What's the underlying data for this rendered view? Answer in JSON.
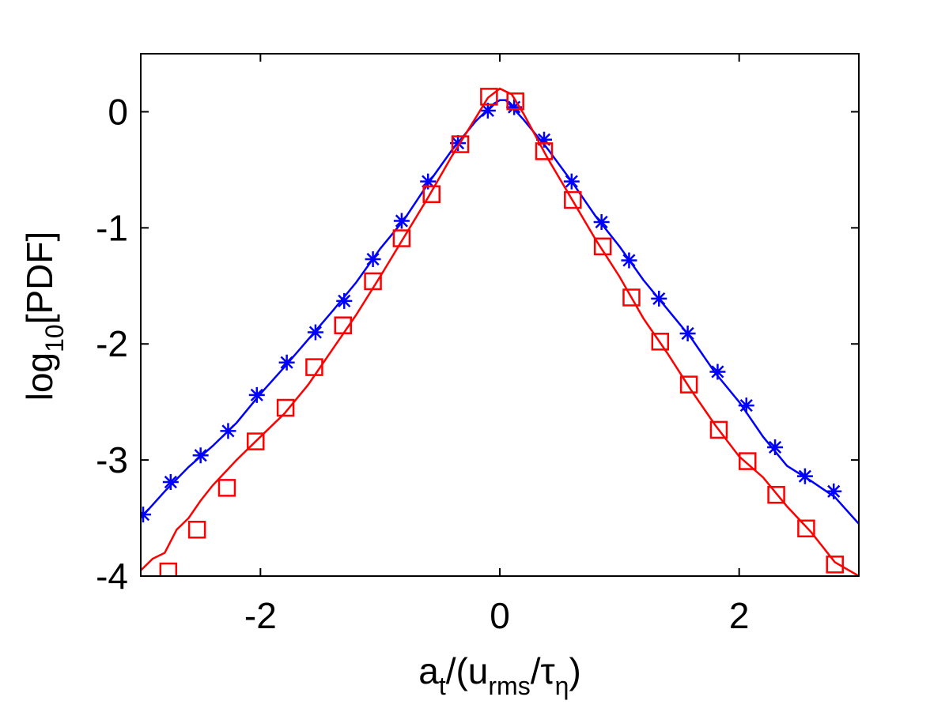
{
  "chart_data": {
    "type": "line",
    "xlabel": {
      "base": "a",
      "sub1": "t",
      "mid": "/(u",
      "sub2": "rms",
      "mid2": "/τ",
      "sub3": "η",
      "end": ")"
    },
    "ylabel": {
      "pre": "log",
      "sub": "10",
      "post": "[PDF]"
    },
    "xlim": [
      -3,
      3
    ],
    "ylim": [
      -4,
      0.5
    ],
    "xticks": [
      -2,
      0,
      2
    ],
    "xtick_labels": [
      "-2",
      "0",
      "2"
    ],
    "yticks": [
      -4,
      -3,
      -2,
      -1,
      0
    ],
    "ytick_labels": [
      "-4",
      "-3",
      "-2",
      "-1",
      "0"
    ],
    "grid": false,
    "series": [
      {
        "name": "asterisk series",
        "color": "#0000ff",
        "marker": "asterisk",
        "line": [
          [
            -3.0,
            -3.5
          ],
          [
            -2.8,
            -3.27
          ],
          [
            -2.6,
            -3.06
          ],
          [
            -2.4,
            -2.88
          ],
          [
            -2.2,
            -2.68
          ],
          [
            -2.0,
            -2.43
          ],
          [
            -1.8,
            -2.2
          ],
          [
            -1.6,
            -1.96
          ],
          [
            -1.4,
            -1.72
          ],
          [
            -1.2,
            -1.47
          ],
          [
            -1.0,
            -1.18
          ],
          [
            -0.8,
            -0.93
          ],
          [
            -0.6,
            -0.62
          ],
          [
            -0.4,
            -0.33
          ],
          [
            -0.2,
            -0.08
          ],
          [
            -0.05,
            0.07
          ],
          [
            0.0,
            0.1
          ],
          [
            0.05,
            0.1
          ],
          [
            0.2,
            -0.07
          ],
          [
            0.4,
            -0.32
          ],
          [
            0.6,
            -0.6
          ],
          [
            0.8,
            -0.9
          ],
          [
            1.0,
            -1.16
          ],
          [
            1.2,
            -1.45
          ],
          [
            1.4,
            -1.7
          ],
          [
            1.6,
            -1.95
          ],
          [
            1.8,
            -2.25
          ],
          [
            2.0,
            -2.5
          ],
          [
            2.2,
            -2.8
          ],
          [
            2.4,
            -3.05
          ],
          [
            2.6,
            -3.18
          ],
          [
            2.8,
            -3.32
          ],
          [
            3.0,
            -3.55
          ]
        ],
        "markers": [
          [
            -2.98,
            -3.47
          ],
          [
            -2.75,
            -3.19
          ],
          [
            -2.5,
            -2.96
          ],
          [
            -2.27,
            -2.75
          ],
          [
            -2.03,
            -2.44
          ],
          [
            -1.78,
            -2.16
          ],
          [
            -1.54,
            -1.9
          ],
          [
            -1.3,
            -1.63
          ],
          [
            -1.06,
            -1.27
          ],
          [
            -0.82,
            -0.94
          ],
          [
            -0.6,
            -0.6
          ],
          [
            -0.35,
            -0.27
          ],
          [
            -0.1,
            0.01
          ],
          [
            0.12,
            0.04
          ],
          [
            0.37,
            -0.24
          ],
          [
            0.6,
            -0.6
          ],
          [
            0.85,
            -0.95
          ],
          [
            1.08,
            -1.28
          ],
          [
            1.33,
            -1.61
          ],
          [
            1.57,
            -1.91
          ],
          [
            1.82,
            -2.24
          ],
          [
            2.06,
            -2.53
          ],
          [
            2.3,
            -2.89
          ],
          [
            2.55,
            -3.14
          ],
          [
            2.79,
            -3.27
          ]
        ]
      },
      {
        "name": "square series",
        "color": "#ff0000",
        "marker": "square",
        "line": [
          [
            -3.0,
            -3.95
          ],
          [
            -2.9,
            -3.85
          ],
          [
            -2.8,
            -3.8
          ],
          [
            -2.7,
            -3.6
          ],
          [
            -2.6,
            -3.5
          ],
          [
            -2.5,
            -3.35
          ],
          [
            -2.4,
            -3.22
          ],
          [
            -2.2,
            -3.0
          ],
          [
            -2.0,
            -2.8
          ],
          [
            -1.8,
            -2.6
          ],
          [
            -1.6,
            -2.35
          ],
          [
            -1.4,
            -2.05
          ],
          [
            -1.2,
            -1.75
          ],
          [
            -1.0,
            -1.42
          ],
          [
            -0.8,
            -1.08
          ],
          [
            -0.6,
            -0.74
          ],
          [
            -0.4,
            -0.38
          ],
          [
            -0.2,
            -0.05
          ],
          [
            -0.1,
            0.12
          ],
          [
            0.0,
            0.2
          ],
          [
            0.1,
            0.15
          ],
          [
            0.2,
            -0.02
          ],
          [
            0.4,
            -0.4
          ],
          [
            0.6,
            -0.75
          ],
          [
            0.8,
            -1.1
          ],
          [
            1.0,
            -1.42
          ],
          [
            1.2,
            -1.78
          ],
          [
            1.4,
            -2.08
          ],
          [
            1.6,
            -2.4
          ],
          [
            1.8,
            -2.7
          ],
          [
            2.0,
            -2.97
          ],
          [
            2.2,
            -3.15
          ],
          [
            2.4,
            -3.4
          ],
          [
            2.6,
            -3.62
          ],
          [
            2.8,
            -3.88
          ],
          [
            3.0,
            -4.0
          ]
        ],
        "markers": [
          [
            -2.77,
            -3.96
          ],
          [
            -2.53,
            -3.6
          ],
          [
            -2.28,
            -3.24
          ],
          [
            -2.04,
            -2.84
          ],
          [
            -1.79,
            -2.55
          ],
          [
            -1.55,
            -2.2
          ],
          [
            -1.31,
            -1.84
          ],
          [
            -1.06,
            -1.46
          ],
          [
            -0.82,
            -1.09
          ],
          [
            -0.57,
            -0.71
          ],
          [
            -0.33,
            -0.28
          ],
          [
            -0.09,
            0.13
          ],
          [
            0.13,
            0.09
          ],
          [
            0.37,
            -0.34
          ],
          [
            0.61,
            -0.76
          ],
          [
            0.86,
            -1.16
          ],
          [
            1.1,
            -1.6
          ],
          [
            1.34,
            -1.98
          ],
          [
            1.58,
            -2.35
          ],
          [
            1.83,
            -2.74
          ],
          [
            2.07,
            -3.01
          ],
          [
            2.31,
            -3.3
          ],
          [
            2.56,
            -3.59
          ],
          [
            2.8,
            -3.9
          ]
        ]
      }
    ]
  }
}
